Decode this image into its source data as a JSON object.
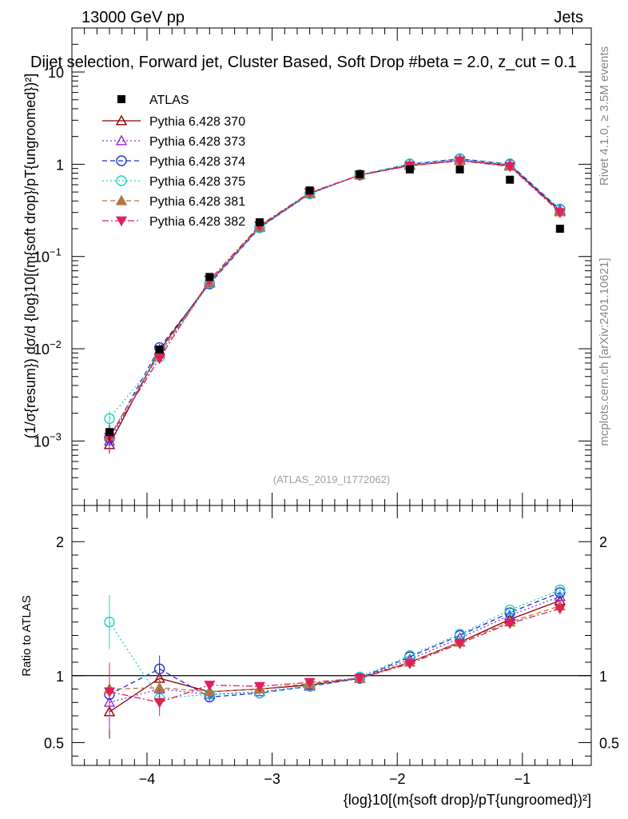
{
  "header": {
    "energy_label": "13000 GeV pp",
    "category_label": "Jets",
    "selection_title": "Dijet selection, Forward jet, Cluster Based, Soft Drop #beta = 2.0, z_cut = 0.1",
    "analysis_id": "(ATLAS_2019_I1772062)",
    "rivet_label": "Rivet 4.1.0, ≥ 3.5M events",
    "mcplots_label": "mcplots.cern.ch [arXiv:2401.10621]"
  },
  "chart_data": {
    "type": "line",
    "main_ylabel": "(1/σ{resum}) dσ/d {log}10[(m{soft drop}/pT{ungroomed})²]",
    "ratio_ylabel": "Ratio to ATLAS",
    "xlabel": "{log}10[(m{soft drop}/pT{ungroomed})²]",
    "xlim": [
      -4.6,
      -0.45
    ],
    "main_ylim": [
      0.0002,
      30
    ],
    "main_yscale": "log",
    "ratio_ylim": [
      0.33,
      2.27
    ],
    "x_ticks": [
      -4,
      -3,
      -2,
      -1
    ],
    "x_tick_labels": [
      "−4",
      "−3",
      "−2",
      "−1"
    ],
    "main_y_ticks": [
      0.001,
      0.01,
      0.1,
      1,
      10
    ],
    "main_y_tick_labels": [
      "10",
      "10",
      "10",
      "1",
      "10"
    ],
    "main_y_tick_exponents": [
      "−3",
      "−2",
      "−1",
      "",
      ""
    ],
    "ratio_y_ticks": [
      0.5,
      1,
      2
    ],
    "ratio_y_tick_labels": [
      "0.5",
      "1",
      "2"
    ],
    "x": [
      -4.3,
      -3.9,
      -3.5,
      -3.1,
      -2.7,
      -2.3,
      -1.9,
      -1.5,
      -1.1,
      -0.7
    ],
    "data": {
      "name": "ATLAS",
      "values": [
        0.00125,
        0.0098,
        0.06,
        0.235,
        0.52,
        0.78,
        0.88,
        0.88,
        0.68,
        0.2
      ]
    },
    "series": [
      {
        "name": "Pythia 6.428 370",
        "color": "#8b0000",
        "dash": "",
        "marker": "triangle-open",
        "ratio": [
          0.73,
          0.98,
          0.88,
          0.9,
          0.93,
          0.98,
          1.1,
          1.25,
          1.42,
          1.56
        ]
      },
      {
        "name": "Pythia 6.428 373",
        "color": "#8a2be2",
        "dash": "2,3",
        "marker": "triangle-open",
        "ratio": [
          0.8,
          0.9,
          0.86,
          0.88,
          0.92,
          0.98,
          1.12,
          1.28,
          1.45,
          1.59
        ]
      },
      {
        "name": "Pythia 6.428 374",
        "color": "#1f2fd8",
        "dash": "6,4",
        "marker": "circle-open",
        "ratio": [
          0.86,
          1.05,
          0.84,
          0.87,
          0.92,
          0.98,
          1.14,
          1.3,
          1.47,
          1.62
        ]
      },
      {
        "name": "Pythia 6.428 375",
        "color": "#20d0c0",
        "dash": "2,3",
        "marker": "circle-open",
        "ratio": [
          1.4,
          0.83,
          0.86,
          0.87,
          0.92,
          0.99,
          1.15,
          1.31,
          1.49,
          1.64
        ]
      },
      {
        "name": "Pythia 6.428 381",
        "color": "#b07840",
        "dash": "6,4",
        "marker": "triangle-filled",
        "ratio": [
          0.9,
          0.91,
          0.88,
          0.9,
          0.94,
          0.98,
          1.1,
          1.25,
          1.4,
          1.52
        ]
      },
      {
        "name": "Pythia 6.428 382",
        "color": "#e0205a",
        "dash": "8,3,2,3",
        "marker": "triangle-down-filled",
        "ratio": [
          0.88,
          0.8,
          0.93,
          0.92,
          0.95,
          0.98,
          1.09,
          1.24,
          1.39,
          1.5
        ]
      }
    ],
    "ratio_errors": [
      0.2,
      0.1,
      0.03,
      0.02,
      0.01,
      0.01,
      0.01,
      0.01,
      0.02,
      0.03
    ],
    "legend_position": "top-left"
  }
}
